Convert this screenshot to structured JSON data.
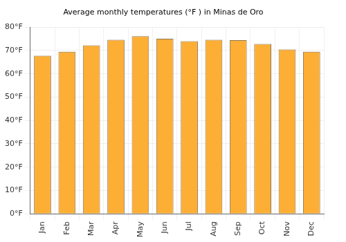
{
  "chart_data": {
    "type": "bar",
    "title": "Average monthly temperatures (°F ) in Minas de Oro",
    "categories": [
      "Jan",
      "Feb",
      "Mar",
      "Apr",
      "May",
      "Jun",
      "Jul",
      "Aug",
      "Sep",
      "Oct",
      "Nov",
      "Dec"
    ],
    "values": [
      67.8,
      69.5,
      72.2,
      74.6,
      76.1,
      75.0,
      74.0,
      74.6,
      74.4,
      72.8,
      70.4,
      69.5
    ],
    "color": "#fdae34",
    "ylim": [
      0,
      80
    ],
    "yticks": [
      {
        "value": 0,
        "label": "0°F"
      },
      {
        "value": 10,
        "label": "10°F"
      },
      {
        "value": 20,
        "label": "20°F"
      },
      {
        "value": 30,
        "label": "30°F"
      },
      {
        "value": 40,
        "label": "40°F"
      },
      {
        "value": 50,
        "label": "50°F"
      },
      {
        "value": 60,
        "label": "60°F"
      },
      {
        "value": 70,
        "label": "70°F"
      },
      {
        "value": 80,
        "label": "80°F"
      }
    ],
    "grid": true
  }
}
